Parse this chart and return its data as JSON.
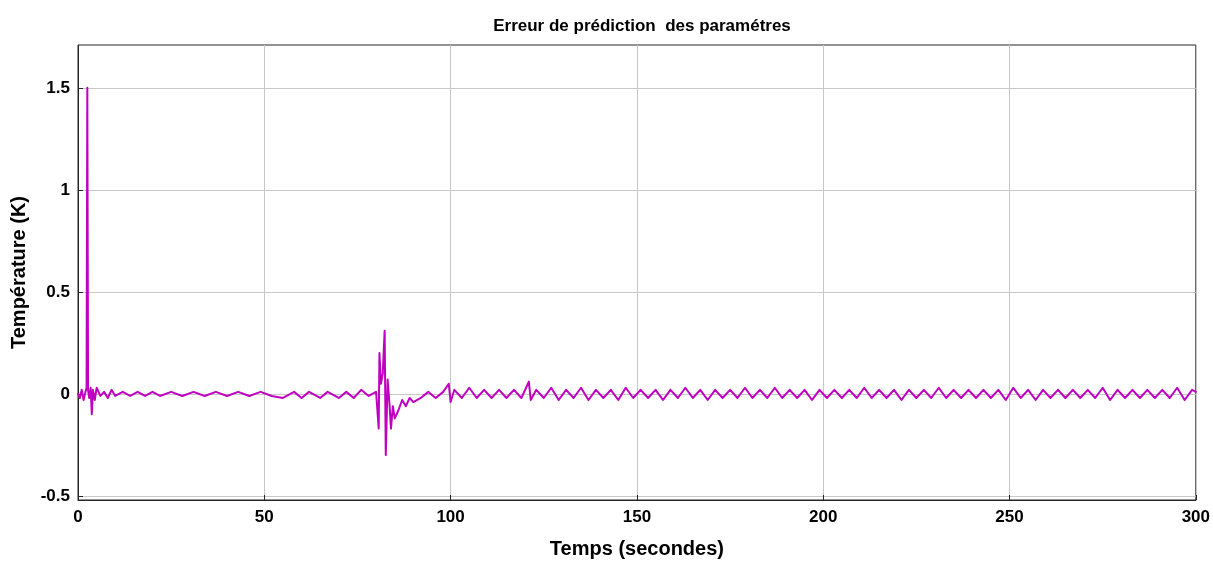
{
  "chart_data": {
    "type": "line",
    "title": "Erreur de prédiction  des paramétres",
    "xlabel": "Temps (secondes)",
    "ylabel": "Température (K)",
    "xlim": [
      0,
      300
    ],
    "xticks": [
      0,
      50,
      100,
      150,
      200,
      250,
      300
    ],
    "ylim": [
      -0.52,
      1.71
    ],
    "yticks": [
      -0.5,
      0,
      0.5,
      1,
      1.5
    ],
    "grid": true,
    "marker": "none",
    "line_style": "solid",
    "series": [
      {
        "color": "#c000c0",
        "x": [
          0,
          0.5,
          1,
          1.5,
          2,
          2.3,
          2.5,
          2.7,
          3,
          3.4,
          3.7,
          4,
          4.5,
          5,
          6,
          7,
          8,
          9,
          10,
          12,
          14,
          16,
          18,
          20,
          22,
          25,
          28,
          31,
          34,
          37,
          40,
          43,
          46,
          49,
          52,
          55,
          58,
          60,
          62,
          65,
          67,
          70,
          72,
          74,
          76,
          78,
          80,
          80.7,
          80.9,
          81.3,
          81.8,
          82.3,
          82.6,
          83.1,
          83.6,
          84,
          84.5,
          85,
          86,
          87,
          88,
          89,
          90,
          92,
          94,
          96,
          98,
          99.5,
          100,
          101,
          103,
          105,
          107,
          109,
          111,
          113,
          115,
          117,
          119,
          121,
          121.5,
          123,
          125,
          127,
          129,
          131,
          133,
          135,
          137,
          139,
          141,
          143,
          145,
          147,
          149,
          151,
          153,
          155,
          157,
          159,
          161,
          163,
          165,
          167,
          169,
          171,
          173,
          175,
          177,
          179,
          181,
          183,
          185,
          187,
          189,
          191,
          193,
          195,
          197,
          199,
          201,
          203,
          205,
          207,
          209,
          211,
          213,
          215,
          217,
          219,
          221,
          223,
          225,
          227,
          229,
          231,
          233,
          235,
          237,
          239,
          241,
          243,
          245,
          247,
          249,
          251,
          253,
          255,
          257,
          259,
          261,
          263,
          265,
          267,
          269,
          271,
          273,
          275,
          277,
          279,
          281,
          283,
          285,
          287,
          289,
          291,
          293,
          295,
          297,
          299,
          300
        ],
        "values": [
          0,
          -0.02,
          0.02,
          -0.03,
          0.01,
          0.03,
          1.5,
          0.02,
          -0.02,
          0.03,
          -0.1,
          0.02,
          -0.03,
          0.03,
          -0.01,
          0.01,
          -0.02,
          0.02,
          -0.01,
          0.01,
          -0.01,
          0.01,
          -0.01,
          0.01,
          -0.01,
          0.01,
          -0.01,
          0.01,
          -0.01,
          0.01,
          -0.01,
          0.01,
          -0.01,
          0.01,
          -0.01,
          -0.02,
          0.01,
          -0.02,
          0.01,
          -0.02,
          0.01,
          -0.02,
          0.01,
          -0.02,
          0.02,
          -0.01,
          0.01,
          -0.17,
          0.2,
          0.05,
          0.1,
          0.31,
          -0.3,
          0.07,
          -0.05,
          -0.17,
          -0.06,
          -0.12,
          -0.08,
          -0.03,
          -0.06,
          -0.02,
          -0.04,
          -0.02,
          0.01,
          -0.02,
          0.01,
          0.05,
          -0.04,
          0.02,
          -0.02,
          0.03,
          -0.02,
          0.02,
          -0.02,
          0.02,
          -0.02,
          0.02,
          -0.02,
          0.06,
          -0.03,
          0.02,
          -0.02,
          0.03,
          -0.03,
          0.02,
          -0.02,
          0.03,
          -0.03,
          0.02,
          -0.02,
          0.02,
          -0.03,
          0.03,
          -0.02,
          0.02,
          -0.02,
          0.02,
          -0.03,
          0.02,
          -0.02,
          0.03,
          -0.02,
          0.02,
          -0.03,
          0.02,
          -0.02,
          0.02,
          -0.02,
          0.03,
          -0.02,
          0.02,
          -0.02,
          0.03,
          -0.02,
          0.02,
          -0.02,
          0.02,
          -0.03,
          0.02,
          -0.02,
          0.02,
          -0.02,
          0.02,
          -0.02,
          0.03,
          -0.02,
          0.02,
          -0.02,
          0.02,
          -0.03,
          0.02,
          -0.02,
          0.02,
          -0.02,
          0.03,
          -0.02,
          0.02,
          -0.02,
          0.02,
          -0.02,
          0.02,
          -0.02,
          0.02,
          -0.03,
          0.03,
          -0.02,
          0.02,
          -0.03,
          0.02,
          -0.02,
          0.02,
          -0.02,
          0.02,
          -0.02,
          0.02,
          -0.02,
          0.03,
          -0.03,
          0.02,
          -0.02,
          0.02,
          -0.02,
          0.02,
          -0.02,
          0.02,
          -0.02,
          0.03,
          -0.03,
          0.02,
          0.01
        ]
      }
    ]
  }
}
